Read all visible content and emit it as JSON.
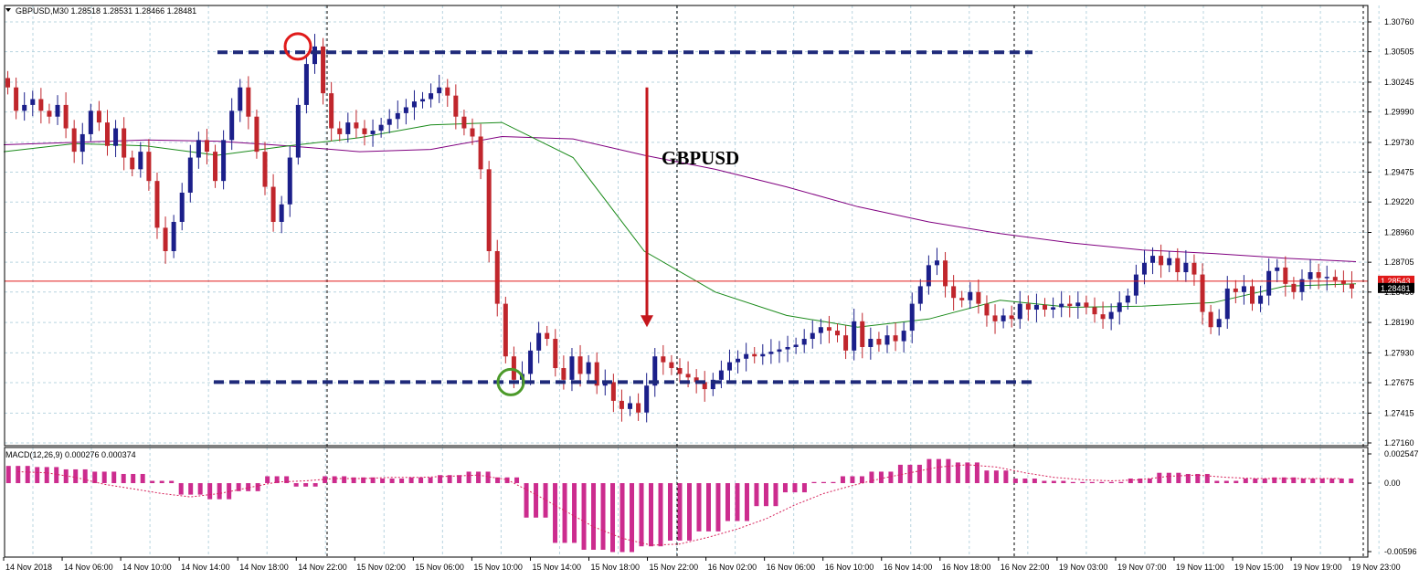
{
  "chart_data": {
    "type": "candlestick",
    "symbol": "GBPUSD",
    "header": "GBPUSD,M30  1.28518 1.28531 1.28466 1.28481",
    "annotation": "GBPUSD",
    "y_ticks": [
      "1.30760",
      "1.30505",
      "1.30245",
      "1.29990",
      "1.29730",
      "1.29475",
      "1.29220",
      "1.28960",
      "1.28705",
      "1.28450",
      "1.28190",
      "1.27930",
      "1.27675",
      "1.27415",
      "1.27160"
    ],
    "ylim": [
      1.2716,
      1.3076
    ],
    "price_badges": [
      {
        "text": "1.28543",
        "value": 1.28543,
        "color": "#e01b1b"
      },
      {
        "text": "1.28481",
        "value": 1.28481,
        "color": "#000000"
      }
    ],
    "x_ticks": [
      "14 Nov 2018",
      "14 Nov 06:00",
      "14 Nov 10:00",
      "14 Nov 14:00",
      "14 Nov 18:00",
      "14 Nov 22:00",
      "15 Nov 02:00",
      "15 Nov 06:00",
      "15 Nov 10:00",
      "15 Nov 14:00",
      "15 Nov 18:00",
      "15 Nov 22:00",
      "16 Nov 02:00",
      "16 Nov 06:00",
      "16 Nov 10:00",
      "16 Nov 14:00",
      "16 Nov 18:00",
      "16 Nov 22:00",
      "19 Nov 03:00",
      "19 Nov 07:00",
      "19 Nov 11:00",
      "19 Nov 15:00",
      "19 Nov 19:00",
      "19 Nov 23:00"
    ],
    "close_path": [
      1.302,
      1.3,
      1.3005,
      1.301,
      1.3,
      1.2995,
      1.3005,
      1.2985,
      1.2965,
      1.298,
      1.3,
      1.299,
      1.297,
      1.2985,
      1.296,
      1.295,
      1.2965,
      1.294,
      1.29,
      1.288,
      1.2905,
      1.293,
      1.296,
      1.2975,
      1.2965,
      1.294,
      1.2975,
      1.3,
      1.302,
      1.2995,
      1.2965,
      1.2935,
      1.2905,
      1.292,
      1.296,
      1.3005,
      1.304,
      1.3055,
      1.3015,
      1.2985,
      1.298,
      1.299,
      1.2985,
      1.298,
      1.2983,
      1.2988,
      1.2993,
      1.2998,
      1.3003,
      1.3008,
      1.301,
      1.3015,
      1.302,
      1.3013,
      1.2995,
      1.2985,
      1.2978,
      1.295,
      1.288,
      1.2835,
      1.279,
      1.277,
      1.2775,
      1.2795,
      1.281,
      1.2805,
      1.278,
      1.277,
      1.279,
      1.2775,
      1.2785,
      1.2765,
      1.2768,
      1.2752,
      1.2745,
      1.275,
      1.2742,
      1.2765,
      1.279,
      1.2785,
      1.278,
      1.2775,
      1.2772,
      1.2768,
      1.2762,
      1.277,
      1.2778,
      1.2785,
      1.2788,
      1.2792,
      1.279,
      1.2792,
      1.2794,
      1.2796,
      1.2798,
      1.28,
      1.2805,
      1.281,
      1.2815,
      1.2812,
      1.2808,
      1.2795,
      1.282,
      1.2798,
      1.2805,
      1.28,
      1.2808,
      1.2803,
      1.2812,
      1.2835,
      1.285,
      1.2868,
      1.2872,
      1.285,
      1.284,
      1.2838,
      1.2845,
      1.2835,
      1.2825,
      1.282,
      1.2825,
      1.2822,
      1.2835,
      1.283,
      1.2834,
      1.283,
      1.2832,
      1.2835,
      1.2833,
      1.2836,
      1.2832,
      1.2826,
      1.2822,
      1.2828,
      1.2836,
      1.2842,
      1.286,
      1.287,
      1.2876,
      1.2868,
      1.2874,
      1.2862,
      1.287,
      1.286,
      1.2828,
      1.2815,
      1.2822,
      1.2848,
      1.2845,
      1.285,
      1.2835,
      1.2842,
      1.2863,
      1.2866,
      1.2852,
      1.2845,
      1.2856,
      1.2862,
      1.2857,
      1.2858,
      1.2855,
      1.2852,
      1.2848
    ],
    "series": [
      {
        "name": "",
        "color": "#800080",
        "values": [
          1.2971,
          1.2973,
          1.2975,
          1.2974,
          1.297,
          1.2965,
          1.2967,
          1.2978,
          1.2976,
          1.2962,
          1.295,
          1.2935,
          1.2918,
          1.2905,
          1.2895,
          1.2887,
          1.2881,
          1.2878,
          1.2874,
          1.2871
        ]
      },
      {
        "name": "",
        "color": "#1a8a1a",
        "values": [
          1.2965,
          1.2972,
          1.297,
          1.2962,
          1.297,
          1.2977,
          1.2988,
          1.299,
          1.296,
          1.288,
          1.2845,
          1.2825,
          1.2815,
          1.2822,
          1.2838,
          1.2832,
          1.2833,
          1.2836,
          1.285,
          1.2852
        ]
      }
    ],
    "levels": [
      {
        "name": "resistance",
        "value": 1.305
      },
      {
        "name": "support",
        "value": 1.2768
      }
    ],
    "markers": [
      {
        "name": "high-circle",
        "value": 1.3055,
        "color": "#e01b1b"
      },
      {
        "name": "low-circle",
        "value": 1.2768,
        "color": "#4c9a2a"
      }
    ],
    "arrow": {
      "from": 1.302,
      "to": 1.2815,
      "color": "#c4161c"
    },
    "macd": {
      "title": "MACD(12,26,9) 0.000276 0.000374",
      "y_ticks": [
        "0.002547",
        "0.00",
        "-0.00596"
      ],
      "ylim": [
        -0.00596,
        0.002547
      ],
      "hist": [
        0.0015,
        0.0014,
        0.0012,
        0.001,
        0.0008,
        0.0002,
        -0.001,
        -0.0014,
        -0.0007,
        0.0006,
        -0.0003,
        0.0006,
        0.0005,
        0.0004,
        0.0005,
        0.0007,
        0.001,
        0.0005,
        -0.003,
        -0.0052,
        -0.0058,
        -0.006,
        -0.0055,
        -0.005,
        -0.0042,
        -0.0033,
        -0.002,
        -0.0008,
        0.0001,
        0.0006,
        0.001,
        0.0016,
        0.0021,
        0.0018,
        0.0011,
        0.0004,
        0.0002,
        0.0001,
        0.0001,
        0.0004,
        0.0009,
        0.0008,
        0.0002,
        0.0004,
        0.0005,
        0.0004,
        0.0004
      ],
      "signal": [
        0.001,
        0.0009,
        0.0005,
        -0.0001,
        -0.0005,
        -0.0009,
        -0.0012,
        -0.0009,
        -0.0004,
        0.0001,
        0.0002,
        0.0004,
        0.0004,
        0.0005,
        0.0005,
        0.0006,
        0.0007,
        0.0003,
        -0.001,
        -0.0024,
        -0.0038,
        -0.0048,
        -0.0054,
        -0.0053,
        -0.0047,
        -0.004,
        -0.0031,
        -0.0019,
        -0.0009,
        -0.0002,
        0.0004,
        0.0009,
        0.0014,
        0.0016,
        0.0014,
        0.0009,
        0.0005,
        0.0003,
        0.0002,
        0.0003,
        0.0006,
        0.0007,
        0.0005,
        0.0004,
        0.0004,
        0.0004,
        0.0004
      ]
    }
  }
}
